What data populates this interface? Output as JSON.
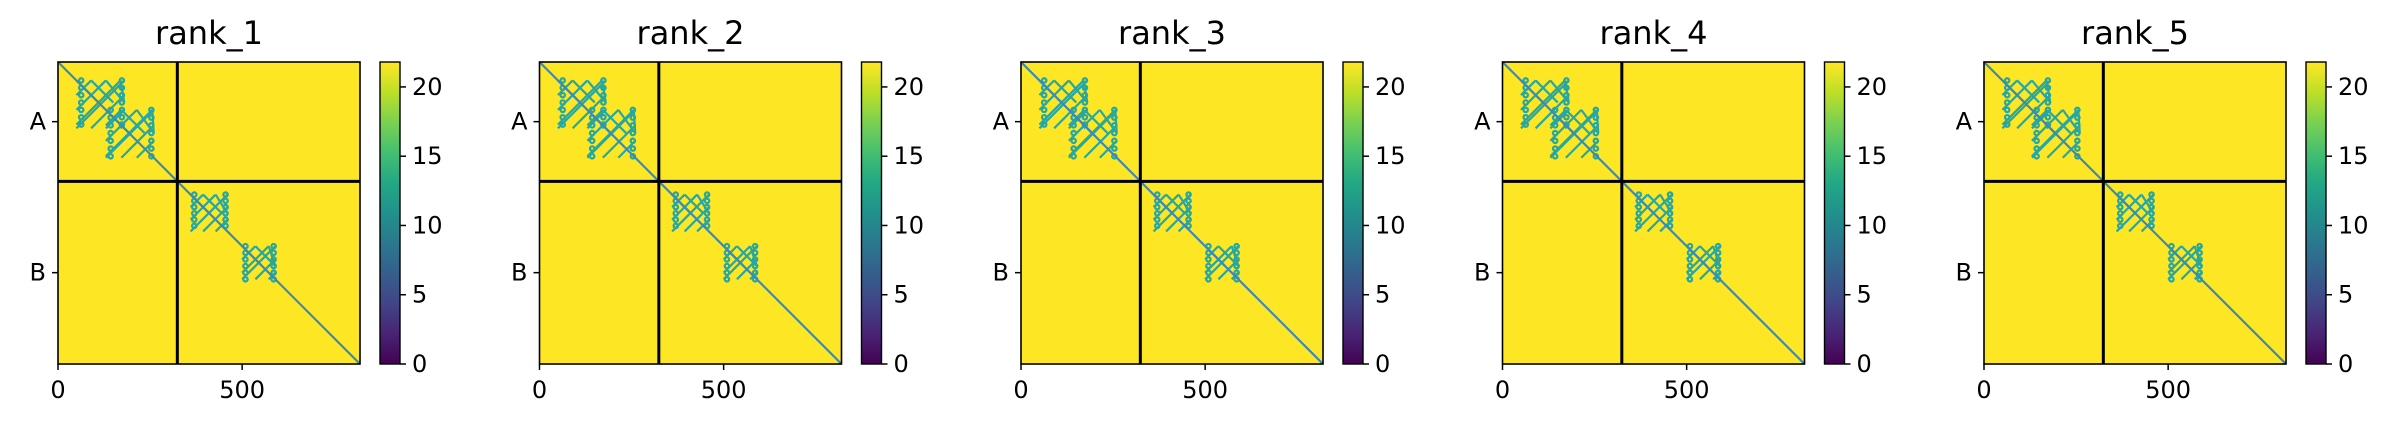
{
  "chart_data": [
    {
      "type": "heatmap",
      "title": "rank_1",
      "row_labels": [
        "A",
        "B"
      ],
      "x_ticks": [
        0,
        500
      ],
      "boundary": 324,
      "matrix_size": 820,
      "colorbar": {
        "ticks": [
          0,
          5,
          10,
          15,
          20
        ],
        "range": [
          0,
          21.8
        ],
        "colormap": "viridis"
      }
    },
    {
      "type": "heatmap",
      "title": "rank_2",
      "row_labels": [
        "A",
        "B"
      ],
      "x_ticks": [
        0,
        500
      ],
      "boundary": 324,
      "matrix_size": 820,
      "colorbar": {
        "ticks": [
          0,
          5,
          10,
          15,
          20
        ],
        "range": [
          0,
          21.8
        ],
        "colormap": "viridis"
      }
    },
    {
      "type": "heatmap",
      "title": "rank_3",
      "row_labels": [
        "A",
        "B"
      ],
      "x_ticks": [
        0,
        500
      ],
      "boundary": 324,
      "matrix_size": 820,
      "colorbar": {
        "ticks": [
          0,
          5,
          10,
          15,
          20
        ],
        "range": [
          0,
          21.8
        ],
        "colormap": "viridis"
      }
    },
    {
      "type": "heatmap",
      "title": "rank_4",
      "row_labels": [
        "A",
        "B"
      ],
      "x_ticks": [
        0,
        500
      ],
      "boundary": 324,
      "matrix_size": 820,
      "colorbar": {
        "ticks": [
          0,
          5,
          10,
          15,
          20
        ],
        "range": [
          0,
          21.8
        ],
        "colormap": "viridis"
      }
    },
    {
      "type": "heatmap",
      "title": "rank_5",
      "row_labels": [
        "A",
        "B"
      ],
      "x_ticks": [
        0,
        500
      ],
      "boundary": 324,
      "matrix_size": 820,
      "colorbar": {
        "ticks": [
          0,
          5,
          10,
          15,
          20
        ],
        "range": [
          0,
          21.8
        ],
        "colormap": "viridis"
      }
    }
  ],
  "colors": {
    "fill": "#fde725",
    "pattern": "#26a7a0",
    "diagonal": "#3b89b8",
    "grid": "#000000"
  }
}
